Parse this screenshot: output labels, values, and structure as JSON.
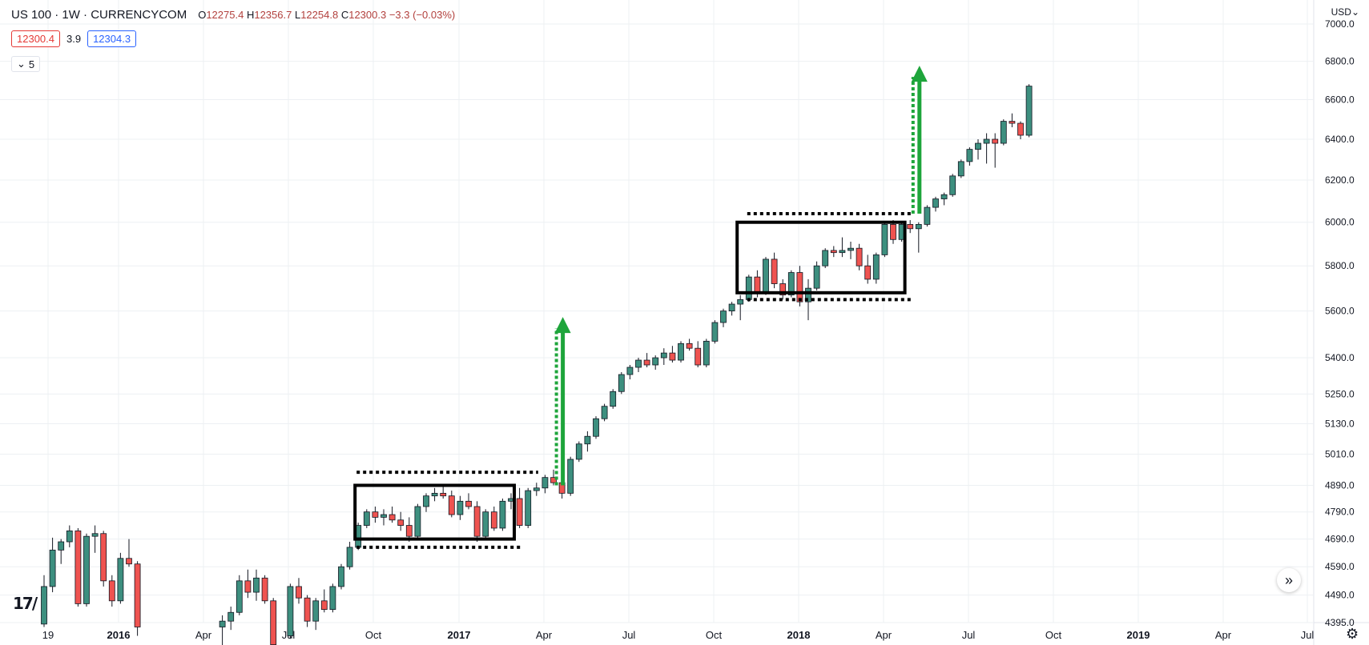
{
  "header": {
    "symbol": "US 100 · 1W · CURRENCYCOM",
    "open_label": "O",
    "open": "12275.4",
    "high_label": "H",
    "high": "12356.7",
    "low_label": "L",
    "low": "12254.8",
    "close_label": "C",
    "close": "12300.3",
    "change": "−3.3 (−0.03%)"
  },
  "quote": {
    "bid": "12300.4",
    "spread": "3.9",
    "ask": "12304.3"
  },
  "indicator_toggle": {
    "count": "5",
    "icon": "chevron-down-icon"
  },
  "currency_menu": {
    "label": "USD",
    "icon": "chevron-down-icon"
  },
  "colors": {
    "up": "#26a69a",
    "up_body": "#3d8f7f",
    "down": "#ef5350",
    "wick": "#131722",
    "grid": "#edf0f3",
    "annotation_box": "#000000",
    "arrow": "#1ea53b"
  },
  "chart_data": {
    "type": "candlestick",
    "x_ticks": [
      "19",
      "2016",
      "Apr",
      "Jul",
      "Oct",
      "2017",
      "Apr",
      "Jul",
      "Oct",
      "2018",
      "Apr",
      "Jul",
      "Oct",
      "2019",
      "Apr",
      "Jul"
    ],
    "y_ticks": [
      "4395.0",
      "4490.0",
      "4590.0",
      "4690.0",
      "4790.0",
      "4890.0",
      "5010.0",
      "5130.0",
      "5250.0",
      "5400.0",
      "5600.0",
      "5800.0",
      "6000.0",
      "6200.0",
      "6400.0",
      "6600.0",
      "6800.0",
      "7000.0"
    ],
    "y_scale": "log",
    "y_range": [
      4395,
      7000
    ],
    "grid": true,
    "x_range_weeks": [
      -1,
      182
    ],
    "candles": [
      {
        "w": 0,
        "o": 4390,
        "h": 4560,
        "l": 4380,
        "c": 4520
      },
      {
        "w": 1,
        "o": 4520,
        "h": 4695,
        "l": 4500,
        "c": 4650
      },
      {
        "w": 2,
        "o": 4650,
        "h": 4690,
        "l": 4600,
        "c": 4680
      },
      {
        "w": 3,
        "o": 4680,
        "h": 4740,
        "l": 4660,
        "c": 4720
      },
      {
        "w": 4,
        "o": 4720,
        "h": 4730,
        "l": 4450,
        "c": 4460
      },
      {
        "w": 5,
        "o": 4460,
        "h": 4710,
        "l": 4450,
        "c": 4700
      },
      {
        "w": 6,
        "o": 4700,
        "h": 4740,
        "l": 4640,
        "c": 4710
      },
      {
        "w": 7,
        "o": 4710,
        "h": 4720,
        "l": 4520,
        "c": 4540
      },
      {
        "w": 8,
        "o": 4540,
        "h": 4560,
        "l": 4450,
        "c": 4470
      },
      {
        "w": 9,
        "o": 4470,
        "h": 4640,
        "l": 4460,
        "c": 4620
      },
      {
        "w": 10,
        "o": 4620,
        "h": 4690,
        "l": 4590,
        "c": 4600
      },
      {
        "w": 11,
        "o": 4600,
        "h": 4610,
        "l": 4350,
        "c": 4380
      },
      {
        "w": 21,
        "o": 4380,
        "h": 4420,
        "l": 4300,
        "c": 4400
      },
      {
        "w": 22,
        "o": 4400,
        "h": 4450,
        "l": 4370,
        "c": 4430
      },
      {
        "w": 23,
        "o": 4430,
        "h": 4560,
        "l": 4420,
        "c": 4540
      },
      {
        "w": 24,
        "o": 4540,
        "h": 4580,
        "l": 4480,
        "c": 4500
      },
      {
        "w": 25,
        "o": 4500,
        "h": 4580,
        "l": 4470,
        "c": 4550
      },
      {
        "w": 26,
        "o": 4550,
        "h": 4560,
        "l": 4460,
        "c": 4470
      },
      {
        "w": 27,
        "o": 4470,
        "h": 4480,
        "l": 4300,
        "c": 4320
      },
      {
        "w": 29,
        "o": 4350,
        "h": 4530,
        "l": 4340,
        "c": 4520
      },
      {
        "w": 30,
        "o": 4520,
        "h": 4550,
        "l": 4460,
        "c": 4480
      },
      {
        "w": 31,
        "o": 4480,
        "h": 4490,
        "l": 4380,
        "c": 4400
      },
      {
        "w": 32,
        "o": 4400,
        "h": 4480,
        "l": 4370,
        "c": 4470
      },
      {
        "w": 33,
        "o": 4470,
        "h": 4510,
        "l": 4430,
        "c": 4440
      },
      {
        "w": 34,
        "o": 4440,
        "h": 4530,
        "l": 4430,
        "c": 4520
      },
      {
        "w": 35,
        "o": 4520,
        "h": 4600,
        "l": 4510,
        "c": 4590
      },
      {
        "w": 36,
        "o": 4590,
        "h": 4680,
        "l": 4580,
        "c": 4660
      },
      {
        "w": 37,
        "o": 4660,
        "h": 4750,
        "l": 4650,
        "c": 4740
      },
      {
        "w": 38,
        "o": 4740,
        "h": 4800,
        "l": 4730,
        "c": 4790
      },
      {
        "w": 39,
        "o": 4790,
        "h": 4810,
        "l": 4750,
        "c": 4770
      },
      {
        "w": 40,
        "o": 4770,
        "h": 4800,
        "l": 4740,
        "c": 4780
      },
      {
        "w": 41,
        "o": 4780,
        "h": 4810,
        "l": 4750,
        "c": 4760
      },
      {
        "w": 42,
        "o": 4760,
        "h": 4790,
        "l": 4720,
        "c": 4740
      },
      {
        "w": 43,
        "o": 4740,
        "h": 4770,
        "l": 4680,
        "c": 4700
      },
      {
        "w": 44,
        "o": 4700,
        "h": 4820,
        "l": 4690,
        "c": 4810
      },
      {
        "w": 45,
        "o": 4810,
        "h": 4860,
        "l": 4790,
        "c": 4850
      },
      {
        "w": 46,
        "o": 4850,
        "h": 4880,
        "l": 4830,
        "c": 4860
      },
      {
        "w": 47,
        "o": 4860,
        "h": 4890,
        "l": 4840,
        "c": 4850
      },
      {
        "w": 48,
        "o": 4850,
        "h": 4870,
        "l": 4770,
        "c": 4780
      },
      {
        "w": 49,
        "o": 4780,
        "h": 4850,
        "l": 4760,
        "c": 4830
      },
      {
        "w": 50,
        "o": 4830,
        "h": 4860,
        "l": 4800,
        "c": 4810
      },
      {
        "w": 51,
        "o": 4810,
        "h": 4830,
        "l": 4680,
        "c": 4700
      },
      {
        "w": 52,
        "o": 4700,
        "h": 4800,
        "l": 4690,
        "c": 4790
      },
      {
        "w": 53,
        "o": 4790,
        "h": 4810,
        "l": 4720,
        "c": 4730
      },
      {
        "w": 54,
        "o": 4730,
        "h": 4840,
        "l": 4720,
        "c": 4830
      },
      {
        "w": 55,
        "o": 4830,
        "h": 4860,
        "l": 4800,
        "c": 4840
      },
      {
        "w": 56,
        "o": 4840,
        "h": 4880,
        "l": 4730,
        "c": 4740
      },
      {
        "w": 57,
        "o": 4740,
        "h": 4880,
        "l": 4730,
        "c": 4870
      },
      {
        "w": 58,
        "o": 4870,
        "h": 4900,
        "l": 4850,
        "c": 4880
      },
      {
        "w": 59,
        "o": 4880,
        "h": 4930,
        "l": 4860,
        "c": 4920
      },
      {
        "w": 60,
        "o": 4920,
        "h": 4950,
        "l": 4890,
        "c": 4900
      },
      {
        "w": 61,
        "o": 4900,
        "h": 4910,
        "l": 4840,
        "c": 4860
      },
      {
        "w": 62,
        "o": 4860,
        "h": 5000,
        "l": 4850,
        "c": 4990
      },
      {
        "w": 63,
        "o": 4990,
        "h": 5060,
        "l": 4980,
        "c": 5050
      },
      {
        "w": 64,
        "o": 5050,
        "h": 5100,
        "l": 5020,
        "c": 5080
      },
      {
        "w": 65,
        "o": 5080,
        "h": 5160,
        "l": 5070,
        "c": 5150
      },
      {
        "w": 66,
        "o": 5150,
        "h": 5210,
        "l": 5140,
        "c": 5200
      },
      {
        "w": 67,
        "o": 5200,
        "h": 5270,
        "l": 5190,
        "c": 5260
      },
      {
        "w": 68,
        "o": 5260,
        "h": 5340,
        "l": 5250,
        "c": 5330
      },
      {
        "w": 69,
        "o": 5330,
        "h": 5370,
        "l": 5310,
        "c": 5360
      },
      {
        "w": 70,
        "o": 5360,
        "h": 5400,
        "l": 5340,
        "c": 5390
      },
      {
        "w": 71,
        "o": 5390,
        "h": 5420,
        "l": 5360,
        "c": 5370
      },
      {
        "w": 72,
        "o": 5370,
        "h": 5410,
        "l": 5350,
        "c": 5400
      },
      {
        "w": 73,
        "o": 5400,
        "h": 5440,
        "l": 5370,
        "c": 5420
      },
      {
        "w": 74,
        "o": 5420,
        "h": 5450,
        "l": 5380,
        "c": 5390
      },
      {
        "w": 75,
        "o": 5390,
        "h": 5470,
        "l": 5380,
        "c": 5460
      },
      {
        "w": 76,
        "o": 5460,
        "h": 5480,
        "l": 5430,
        "c": 5440
      },
      {
        "w": 77,
        "o": 5440,
        "h": 5470,
        "l": 5360,
        "c": 5370
      },
      {
        "w": 78,
        "o": 5370,
        "h": 5480,
        "l": 5360,
        "c": 5470
      },
      {
        "w": 79,
        "o": 5470,
        "h": 5560,
        "l": 5460,
        "c": 5550
      },
      {
        "w": 80,
        "o": 5550,
        "h": 5610,
        "l": 5530,
        "c": 5600
      },
      {
        "w": 81,
        "o": 5600,
        "h": 5640,
        "l": 5580,
        "c": 5630
      },
      {
        "w": 82,
        "o": 5630,
        "h": 5670,
        "l": 5560,
        "c": 5650
      },
      {
        "w": 83,
        "o": 5650,
        "h": 5760,
        "l": 5640,
        "c": 5750
      },
      {
        "w": 84,
        "o": 5750,
        "h": 5780,
        "l": 5660,
        "c": 5680
      },
      {
        "w": 85,
        "o": 5680,
        "h": 5840,
        "l": 5670,
        "c": 5830
      },
      {
        "w": 86,
        "o": 5830,
        "h": 5860,
        "l": 5700,
        "c": 5720
      },
      {
        "w": 87,
        "o": 5720,
        "h": 5740,
        "l": 5650,
        "c": 5670
      },
      {
        "w": 88,
        "o": 5670,
        "h": 5780,
        "l": 5660,
        "c": 5770
      },
      {
        "w": 89,
        "o": 5770,
        "h": 5800,
        "l": 5620,
        "c": 5640
      },
      {
        "w": 90,
        "o": 5640,
        "h": 5740,
        "l": 5560,
        "c": 5700
      },
      {
        "w": 91,
        "o": 5700,
        "h": 5820,
        "l": 5690,
        "c": 5800
      },
      {
        "w": 92,
        "o": 5800,
        "h": 5880,
        "l": 5790,
        "c": 5870
      },
      {
        "w": 93,
        "o": 5870,
        "h": 5890,
        "l": 5840,
        "c": 5860
      },
      {
        "w": 94,
        "o": 5860,
        "h": 5930,
        "l": 5840,
        "c": 5870
      },
      {
        "w": 95,
        "o": 5870,
        "h": 5910,
        "l": 5830,
        "c": 5880
      },
      {
        "w": 96,
        "o": 5880,
        "h": 5900,
        "l": 5780,
        "c": 5800
      },
      {
        "w": 97,
        "o": 5800,
        "h": 5850,
        "l": 5720,
        "c": 5740
      },
      {
        "w": 98,
        "o": 5740,
        "h": 5860,
        "l": 5720,
        "c": 5850
      },
      {
        "w": 99,
        "o": 5850,
        "h": 6000,
        "l": 5840,
        "c": 5990
      },
      {
        "w": 100,
        "o": 5990,
        "h": 6010,
        "l": 5900,
        "c": 5920
      },
      {
        "w": 101,
        "o": 5920,
        "h": 6000,
        "l": 5910,
        "c": 5990
      },
      {
        "w": 102,
        "o": 5990,
        "h": 6010,
        "l": 5950,
        "c": 5970
      },
      {
        "w": 103,
        "o": 5970,
        "h": 6000,
        "l": 5860,
        "c": 5990
      },
      {
        "w": 104,
        "o": 5990,
        "h": 6080,
        "l": 5980,
        "c": 6070
      },
      {
        "w": 105,
        "o": 6070,
        "h": 6120,
        "l": 6050,
        "c": 6110
      },
      {
        "w": 106,
        "o": 6110,
        "h": 6140,
        "l": 6080,
        "c": 6130
      },
      {
        "w": 107,
        "o": 6130,
        "h": 6230,
        "l": 6120,
        "c": 6220
      },
      {
        "w": 108,
        "o": 6220,
        "h": 6300,
        "l": 6210,
        "c": 6290
      },
      {
        "w": 109,
        "o": 6290,
        "h": 6360,
        "l": 6270,
        "c": 6350
      },
      {
        "w": 110,
        "o": 6350,
        "h": 6400,
        "l": 6300,
        "c": 6380
      },
      {
        "w": 111,
        "o": 6380,
        "h": 6430,
        "l": 6280,
        "c": 6400
      },
      {
        "w": 112,
        "o": 6400,
        "h": 6430,
        "l": 6260,
        "c": 6380
      },
      {
        "w": 113,
        "o": 6380,
        "h": 6500,
        "l": 6370,
        "c": 6490
      },
      {
        "w": 114,
        "o": 6490,
        "h": 6530,
        "l": 6460,
        "c": 6480
      },
      {
        "w": 115,
        "o": 6480,
        "h": 6490,
        "l": 6400,
        "c": 6420
      },
      {
        "w": 116,
        "o": 6420,
        "h": 6680,
        "l": 6410,
        "c": 6670
      }
    ],
    "annotations": {
      "range_boxes": [
        {
          "w0": 37,
          "w1": 55,
          "top": 4890,
          "bottom": 4690
        },
        {
          "w0": 82,
          "w1": 101,
          "top": 6000,
          "bottom": 5680
        }
      ],
      "dotted_lines": [
        {
          "w0": 37,
          "w1": 58,
          "y": 4940
        },
        {
          "w0": 37,
          "w1": 56,
          "y": 4660
        },
        {
          "w0": 83,
          "w1": 102,
          "y": 6040
        },
        {
          "w0": 83,
          "w1": 102,
          "y": 5650
        }
      ],
      "arrows": [
        {
          "w": 61,
          "from": 4890,
          "to": 5560
        },
        {
          "w": 103,
          "from": 6040,
          "to": 6760
        }
      ]
    }
  }
}
